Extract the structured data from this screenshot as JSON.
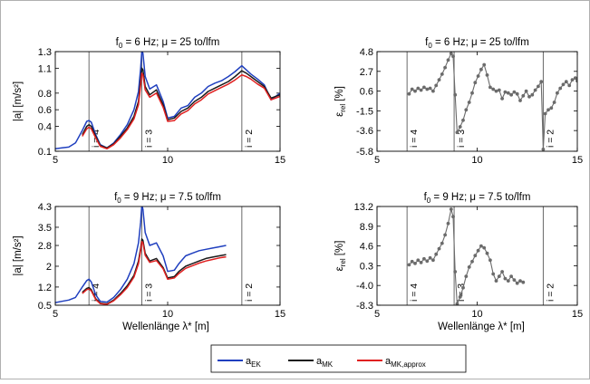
{
  "xlabel": "Wellenlänge λ* [m]",
  "legend": [
    {
      "name": "a_EK",
      "base": "a",
      "sub": "EK",
      "color": "#1f3fbf"
    },
    {
      "name": "a_MK",
      "base": "a",
      "sub": "MK",
      "color": "#1a1a1a"
    },
    {
      "name": "a_MK,approx",
      "base": "a",
      "sub": "MK,approx",
      "color": "#e02020"
    }
  ],
  "chart_data": [
    {
      "id": "tl",
      "type": "line",
      "title": "f_0 = 6 Hz; μ = 25 to/lfm",
      "title_parts": {
        "a": "f",
        "sub": "0",
        "b": " = 6 Hz; μ = 25 to/lfm"
      },
      "ylabel": "|a| [m/s²]",
      "xlim": [
        5,
        15
      ],
      "ylim": [
        0.1,
        1.3
      ],
      "xticks": [
        "5",
        "10",
        "15"
      ],
      "yticks": [
        "0.1",
        "0.4",
        "0.6",
        "0.8",
        "1.1",
        "1.3"
      ],
      "yticks_v": [
        0.1,
        0.4,
        0.6,
        0.8,
        1.1,
        1.3
      ],
      "vlines": [
        {
          "x": 6.5,
          "label": "i = 4"
        },
        {
          "x": 8.85,
          "label": "i = 3"
        },
        {
          "x": 13.3,
          "label": "i = 2"
        }
      ],
      "series": [
        {
          "name": "a_EK",
          "color": "#1f3fbf",
          "x": [
            5.0,
            5.3,
            5.6,
            5.9,
            6.2,
            6.4,
            6.5,
            6.6,
            6.8,
            7.0,
            7.3,
            7.6,
            7.9,
            8.2,
            8.5,
            8.7,
            8.8,
            8.85,
            8.9,
            9.0,
            9.2,
            9.5,
            9.8,
            10.0,
            10.3,
            10.6,
            10.9,
            11.2,
            11.5,
            11.8,
            12.1,
            12.4,
            12.7,
            13.0,
            13.3,
            13.5,
            13.7,
            14.0,
            14.3,
            14.6,
            15.0
          ],
          "y": [
            0.13,
            0.14,
            0.15,
            0.2,
            0.35,
            0.46,
            0.47,
            0.45,
            0.3,
            0.18,
            0.14,
            0.2,
            0.3,
            0.42,
            0.6,
            0.82,
            1.1,
            1.31,
            1.28,
            1.0,
            0.85,
            0.9,
            0.7,
            0.5,
            0.52,
            0.62,
            0.65,
            0.75,
            0.8,
            0.88,
            0.92,
            0.95,
            1.0,
            1.06,
            1.13,
            1.08,
            1.03,
            0.97,
            0.9,
            0.72,
            0.8
          ]
        },
        {
          "name": "a_MK",
          "color": "#1a1a1a",
          "x": [
            6.2,
            6.4,
            6.5,
            6.6,
            6.8,
            7.0,
            7.3,
            7.6,
            7.9,
            8.2,
            8.5,
            8.7,
            8.8,
            8.85,
            8.9,
            9.0,
            9.2,
            9.5,
            9.8,
            10.0,
            10.3,
            10.6,
            10.9,
            11.2,
            11.5,
            11.8,
            12.1,
            12.4,
            12.7,
            13.0,
            13.3,
            13.5,
            13.7,
            14.0,
            14.3,
            14.6,
            15.0
          ],
          "y": [
            0.3,
            0.4,
            0.42,
            0.4,
            0.28,
            0.17,
            0.14,
            0.19,
            0.28,
            0.38,
            0.52,
            0.7,
            0.95,
            1.1,
            1.08,
            0.88,
            0.78,
            0.84,
            0.66,
            0.48,
            0.5,
            0.58,
            0.62,
            0.7,
            0.75,
            0.82,
            0.86,
            0.9,
            0.94,
            1.0,
            1.07,
            1.04,
            1.0,
            0.94,
            0.88,
            0.74,
            0.78
          ]
        },
        {
          "name": "a_MK,approx",
          "color": "#e02020",
          "x": [
            6.2,
            6.4,
            6.5,
            6.6,
            6.8,
            7.0,
            7.3,
            7.6,
            7.9,
            8.2,
            8.5,
            8.7,
            8.8,
            8.85,
            8.9,
            9.0,
            9.2,
            9.5,
            9.8,
            10.0,
            10.3,
            10.6,
            10.9,
            11.2,
            11.5,
            11.8,
            12.1,
            12.4,
            12.7,
            13.0,
            13.3,
            13.5,
            13.7,
            14.0,
            14.3,
            14.6,
            15.0
          ],
          "y": [
            0.28,
            0.37,
            0.39,
            0.37,
            0.26,
            0.16,
            0.13,
            0.18,
            0.26,
            0.36,
            0.49,
            0.66,
            0.9,
            1.04,
            1.02,
            0.84,
            0.75,
            0.8,
            0.63,
            0.46,
            0.47,
            0.55,
            0.59,
            0.67,
            0.72,
            0.79,
            0.83,
            0.87,
            0.91,
            0.96,
            1.02,
            1.0,
            0.97,
            0.91,
            0.86,
            0.72,
            0.76
          ]
        }
      ]
    },
    {
      "id": "tr",
      "type": "line",
      "title": "f_0 = 6 Hz; μ = 25 to/lfm",
      "title_parts": {
        "a": "f",
        "sub": "0",
        "b": " = 6 Hz; μ = 25 to/lfm"
      },
      "ylabel": "ε_rel [%]",
      "ylabel_parts": {
        "a": "ε",
        "sub": "rel",
        "b": " [%]"
      },
      "xlim": [
        5,
        15
      ],
      "ylim": [
        -5.8,
        4.8
      ],
      "xticks": [
        "5",
        "10",
        "15"
      ],
      "yticks": [
        "-5.8",
        "-3.6",
        "-1.5",
        "0.6",
        "2.7",
        "4.8"
      ],
      "yticks_v": [
        -5.8,
        -3.6,
        -1.5,
        0.6,
        2.7,
        4.8
      ],
      "vlines": [
        {
          "x": 6.5,
          "label": "i = 4"
        },
        {
          "x": 8.85,
          "label": "i = 3"
        },
        {
          "x": 13.3,
          "label": "i = 2"
        }
      ],
      "series": [
        {
          "name": "ε_rel",
          "color": "#6b6b6b",
          "markers": true,
          "x": [
            6.6,
            6.75,
            6.9,
            7.05,
            7.2,
            7.35,
            7.5,
            7.65,
            7.8,
            7.95,
            8.1,
            8.25,
            8.4,
            8.55,
            8.7,
            8.8,
            8.9,
            9.0,
            9.15,
            9.3,
            9.45,
            9.6,
            9.75,
            9.9,
            10.05,
            10.2,
            10.35,
            10.5,
            10.65,
            10.8,
            10.95,
            11.1,
            11.25,
            11.4,
            11.55,
            11.7,
            11.85,
            12.0,
            12.15,
            12.3,
            12.45,
            12.6,
            12.75,
            12.9,
            13.05,
            13.2,
            13.3,
            13.4,
            13.55,
            13.7,
            13.85,
            14.0,
            14.15,
            14.3,
            14.45,
            14.6,
            14.75,
            14.9,
            15.0
          ],
          "y": [
            0.3,
            0.8,
            0.6,
            0.9,
            0.7,
            1.0,
            0.8,
            0.9,
            0.6,
            1.2,
            1.8,
            2.4,
            3.1,
            3.9,
            4.6,
            4.3,
            0.2,
            -3.8,
            -3.2,
            -2.5,
            -1.4,
            -0.6,
            0.4,
            1.5,
            2.2,
            2.9,
            3.4,
            2.3,
            1.0,
            0.8,
            0.6,
            0.7,
            -0.2,
            0.5,
            0.4,
            0.2,
            0.5,
            0.3,
            -0.4,
            0.1,
            0.6,
            0.0,
            0.2,
            0.7,
            1.1,
            1.6,
            -5.6,
            -1.8,
            -1.4,
            -1.2,
            -0.6,
            0.4,
            0.9,
            1.3,
            1.6,
            1.2,
            1.8,
            2.0,
            1.7
          ]
        }
      ]
    },
    {
      "id": "bl",
      "type": "line",
      "title": "f_0 = 9 Hz; μ = 7.5 to/lfm",
      "title_parts": {
        "a": "f",
        "sub": "0",
        "b": " = 9 Hz; μ = 7.5 to/lfm"
      },
      "ylabel": "|a| [m/s²]",
      "xlim": [
        5,
        15
      ],
      "ylim": [
        0.5,
        4.3
      ],
      "xticks": [
        "5",
        "10",
        "15"
      ],
      "yticks": [
        "0.5",
        "1.2",
        "2",
        "2.8",
        "3.5",
        "4.3"
      ],
      "yticks_v": [
        0.5,
        1.2,
        2.0,
        2.8,
        3.5,
        4.3
      ],
      "vlines": [
        {
          "x": 6.5,
          "label": "i = 4"
        },
        {
          "x": 8.85,
          "label": "i = 3"
        },
        {
          "x": 13.3,
          "label": "i = 2"
        }
      ],
      "series": [
        {
          "name": "a_EK",
          "color": "#1f3fbf",
          "x": [
            5.0,
            5.3,
            5.6,
            5.9,
            6.2,
            6.4,
            6.5,
            6.6,
            6.8,
            7.0,
            7.3,
            7.6,
            7.9,
            8.2,
            8.5,
            8.7,
            8.8,
            8.85,
            8.9,
            9.0,
            9.2,
            9.5,
            9.8,
            10.0,
            10.3,
            10.5,
            10.8,
            11.1,
            11.4,
            11.7,
            12.0,
            12.3,
            12.6
          ],
          "y": [
            0.6,
            0.65,
            0.7,
            0.8,
            1.2,
            1.45,
            1.5,
            1.4,
            0.9,
            0.65,
            0.62,
            0.8,
            1.1,
            1.5,
            2.1,
            2.9,
            3.7,
            4.35,
            4.2,
            3.3,
            2.8,
            2.9,
            2.4,
            1.8,
            1.85,
            2.1,
            2.4,
            2.5,
            2.6,
            2.65,
            2.7,
            2.75,
            2.8
          ]
        },
        {
          "name": "a_MK",
          "color": "#1a1a1a",
          "x": [
            6.2,
            6.4,
            6.5,
            6.6,
            6.8,
            7.0,
            7.3,
            7.6,
            7.9,
            8.2,
            8.5,
            8.7,
            8.8,
            8.85,
            8.9,
            9.0,
            9.2,
            9.5,
            9.8,
            10.0,
            10.3,
            10.5,
            10.8,
            11.1,
            11.4,
            11.7,
            12.0,
            12.3,
            12.6
          ],
          "y": [
            1.0,
            1.15,
            1.18,
            1.1,
            0.75,
            0.58,
            0.55,
            0.7,
            0.95,
            1.25,
            1.65,
            2.2,
            2.7,
            3.05,
            3.0,
            2.5,
            2.2,
            2.3,
            1.95,
            1.55,
            1.6,
            1.8,
            2.0,
            2.1,
            2.2,
            2.3,
            2.35,
            2.4,
            2.45
          ]
        },
        {
          "name": "a_MK,approx",
          "color": "#e02020",
          "x": [
            6.2,
            6.4,
            6.5,
            6.6,
            6.8,
            7.0,
            7.3,
            7.6,
            7.9,
            8.2,
            8.5,
            8.7,
            8.8,
            8.85,
            8.9,
            9.0,
            9.2,
            9.5,
            9.8,
            10.0,
            10.3,
            10.5,
            10.8,
            11.1,
            11.4,
            11.7,
            12.0,
            12.3,
            12.6
          ],
          "y": [
            0.95,
            1.1,
            1.12,
            1.05,
            0.72,
            0.56,
            0.53,
            0.67,
            0.9,
            1.18,
            1.58,
            2.1,
            2.6,
            2.95,
            2.9,
            2.42,
            2.15,
            2.22,
            1.9,
            1.5,
            1.55,
            1.72,
            1.92,
            2.02,
            2.12,
            2.2,
            2.26,
            2.32,
            2.36
          ]
        }
      ]
    },
    {
      "id": "br",
      "type": "line",
      "title": "f_0 = 9 Hz; μ = 7.5 to/lfm",
      "title_parts": {
        "a": "f",
        "sub": "0",
        "b": " = 9 Hz; μ = 7.5 to/lfm"
      },
      "ylabel": "ε_rel [%]",
      "ylabel_parts": {
        "a": "ε",
        "sub": "rel",
        "b": " [%]"
      },
      "xlim": [
        5,
        15
      ],
      "ylim": [
        -8.3,
        13.2
      ],
      "xticks": [
        "5",
        "10",
        "15"
      ],
      "yticks": [
        "-8.3",
        "-4.0",
        "0.3",
        "4.6",
        "8.9",
        "13.2"
      ],
      "yticks_v": [
        -8.3,
        -4.0,
        0.3,
        4.6,
        8.9,
        13.2
      ],
      "vlines": [
        {
          "x": 6.5,
          "label": "i = 4"
        },
        {
          "x": 8.85,
          "label": "i = 3"
        },
        {
          "x": 13.3,
          "label": "i = 2"
        }
      ],
      "series": [
        {
          "name": "ε_rel",
          "color": "#6b6b6b",
          "markers": true,
          "x": [
            6.6,
            6.75,
            6.9,
            7.05,
            7.2,
            7.35,
            7.5,
            7.65,
            7.8,
            7.95,
            8.1,
            8.25,
            8.4,
            8.55,
            8.7,
            8.8,
            8.9,
            9.0,
            9.15,
            9.3,
            9.45,
            9.6,
            9.75,
            9.9,
            10.05,
            10.2,
            10.35,
            10.5,
            10.65,
            10.8,
            10.95,
            11.1,
            11.25,
            11.4,
            11.55,
            11.7,
            11.85,
            12.0,
            12.15,
            12.3
          ],
          "y": [
            0.5,
            1.2,
            0.8,
            1.5,
            1.0,
            1.8,
            1.3,
            2.0,
            1.5,
            2.8,
            4.0,
            5.2,
            7.0,
            9.5,
            12.6,
            11.0,
            -1.0,
            -8.0,
            -6.5,
            -4.5,
            -2.0,
            0.0,
            1.2,
            2.5,
            3.6,
            4.6,
            4.2,
            3.0,
            1.5,
            -1.5,
            -3.0,
            -2.0,
            -1.0,
            -2.5,
            -3.0,
            -2.0,
            -2.8,
            -3.5,
            -3.0,
            -3.3
          ]
        }
      ]
    }
  ]
}
